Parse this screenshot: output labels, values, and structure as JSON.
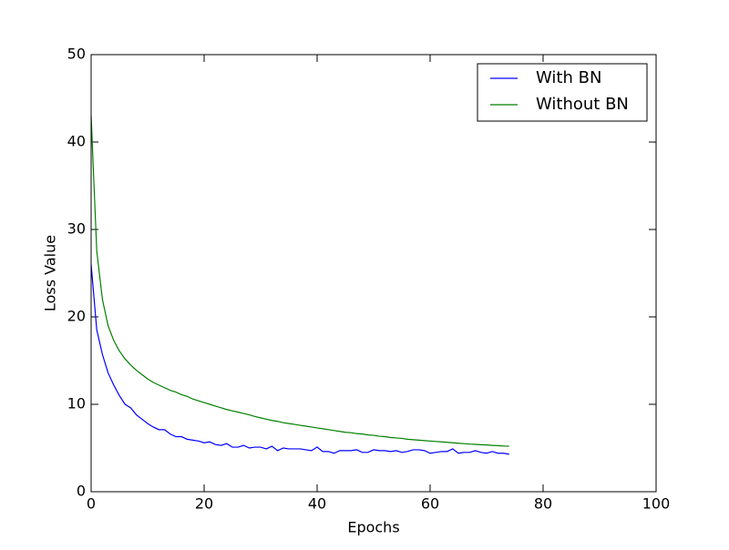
{
  "chart_data": {
    "type": "line",
    "xlabel": "Epochs",
    "ylabel": "Loss Value",
    "x": [
      0,
      1,
      2,
      3,
      4,
      5,
      6,
      7,
      8,
      9,
      10,
      11,
      12,
      13,
      14,
      15,
      16,
      17,
      18,
      19,
      20,
      21,
      22,
      23,
      24,
      25,
      26,
      27,
      28,
      29,
      30,
      31,
      32,
      33,
      34,
      35,
      36,
      37,
      38,
      39,
      40,
      41,
      42,
      43,
      44,
      45,
      46,
      47,
      48,
      49,
      50,
      51,
      52,
      53,
      54,
      55,
      56,
      57,
      58,
      59,
      60,
      61,
      62,
      63,
      64,
      65,
      66,
      67,
      68,
      69,
      70,
      71,
      72,
      73,
      74
    ],
    "series": [
      {
        "name": "With BN",
        "color": "#0000ff",
        "values": [
          26,
          18.5,
          15.7,
          13.6,
          12.2,
          11,
          10,
          9.6,
          8.8,
          8.3,
          7.8,
          7.4,
          7.1,
          7.1,
          6.6,
          6.3,
          6.3,
          6.0,
          5.9,
          5.8,
          5.6,
          5.7,
          5.4,
          5.3,
          5.5,
          5.1,
          5.1,
          5.3,
          5.0,
          5.1,
          5.1,
          4.9,
          5.2,
          4.7,
          5.0,
          4.9,
          4.9,
          4.9,
          4.8,
          4.7,
          5.1,
          4.6,
          4.6,
          4.4,
          4.7,
          4.7,
          4.7,
          4.8,
          4.5,
          4.5,
          4.8,
          4.7,
          4.7,
          4.6,
          4.7,
          4.5,
          4.6,
          4.8,
          4.8,
          4.7,
          4.4,
          4.5,
          4.6,
          4.6,
          4.9,
          4.4,
          4.5,
          4.5,
          4.7,
          4.5,
          4.4,
          4.6,
          4.4,
          4.4,
          4.3
        ]
      },
      {
        "name": "Without BN",
        "color": "#008000",
        "values": [
          43,
          27.5,
          22,
          19,
          17.3,
          16.1,
          15.2,
          14.5,
          13.9,
          13.4,
          12.9,
          12.5,
          12.2,
          11.9,
          11.6,
          11.4,
          11.1,
          10.9,
          10.6,
          10.4,
          10.2,
          10.0,
          9.8,
          9.6,
          9.4,
          9.25,
          9.1,
          8.95,
          8.8,
          8.6,
          8.45,
          8.3,
          8.15,
          8.05,
          7.9,
          7.8,
          7.7,
          7.6,
          7.5,
          7.4,
          7.3,
          7.2,
          7.1,
          7.0,
          6.9,
          6.8,
          6.75,
          6.65,
          6.6,
          6.5,
          6.45,
          6.35,
          6.3,
          6.2,
          6.15,
          6.1,
          6.0,
          5.95,
          5.9,
          5.85,
          5.8,
          5.75,
          5.7,
          5.65,
          5.6,
          5.55,
          5.5,
          5.45,
          5.42,
          5.38,
          5.35,
          5.3,
          5.27,
          5.23,
          5.2
        ]
      }
    ],
    "xlim": [
      0,
      100
    ],
    "xticks": [
      0,
      20,
      40,
      60,
      80,
      100
    ],
    "ylim": [
      0,
      50
    ],
    "yticks": [
      0,
      10,
      20,
      30,
      40,
      50
    ],
    "legend": "upper right",
    "grid": false
  }
}
